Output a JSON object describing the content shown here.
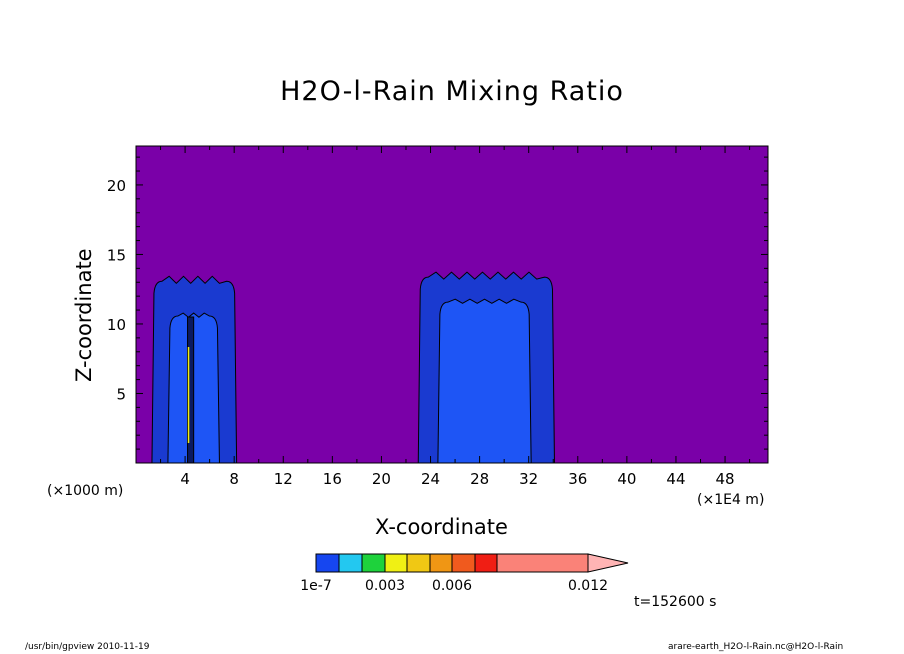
{
  "chart_data": {
    "type": "heatmap",
    "title": "H2O-l-Rain Mixing Ratio",
    "xlabel": "X-coordinate",
    "ylabel": "Z-coordinate",
    "x_unit_left": "(×1000 m)",
    "x_unit_right": "(×1E4 m)",
    "x_ticks": [
      4,
      8,
      12,
      16,
      20,
      24,
      28,
      32,
      36,
      40,
      44,
      48
    ],
    "y_ticks": [
      5,
      10,
      15,
      20
    ],
    "xlim": [
      0,
      51.5
    ],
    "ylim": [
      0,
      22.8
    ],
    "background_color": "#7a00a8",
    "levels": [
      1e-07,
      0.0015,
      0.003,
      0.0045,
      0.006,
      0.0075,
      0.009,
      0.012
    ],
    "colorbar": {
      "colors": [
        "#1646f0",
        "#23c8f0",
        "#1ed23c",
        "#f0f014",
        "#f0c814",
        "#f09614",
        "#f05a1e",
        "#f01e14",
        "#fa8278",
        "#ffb4b4"
      ],
      "tick_labels": [
        "1e-7",
        "0.003",
        "0.006",
        "0.012"
      ]
    },
    "cells": [
      {
        "name": "left-cell",
        "x": [
          1.3,
          8.2
        ],
        "top": 13.5,
        "inner_x": [
          2.6,
          6.8
        ],
        "inner_top": 11.0,
        "core_x": [
          4.2,
          4.7
        ],
        "core_top": 10.5
      },
      {
        "name": "right-cell",
        "x": [
          23.0,
          34.1
        ],
        "top": 13.8,
        "inner_x": [
          24.6,
          32.2
        ],
        "inner_top": 12.0
      }
    ],
    "time_label": "t=152600 s",
    "footer_left": "/usr/bin/gpview   2010-11-19",
    "footer_right": "arare-earth_H2O-l-Rain.nc@H2O-l-Rain"
  }
}
